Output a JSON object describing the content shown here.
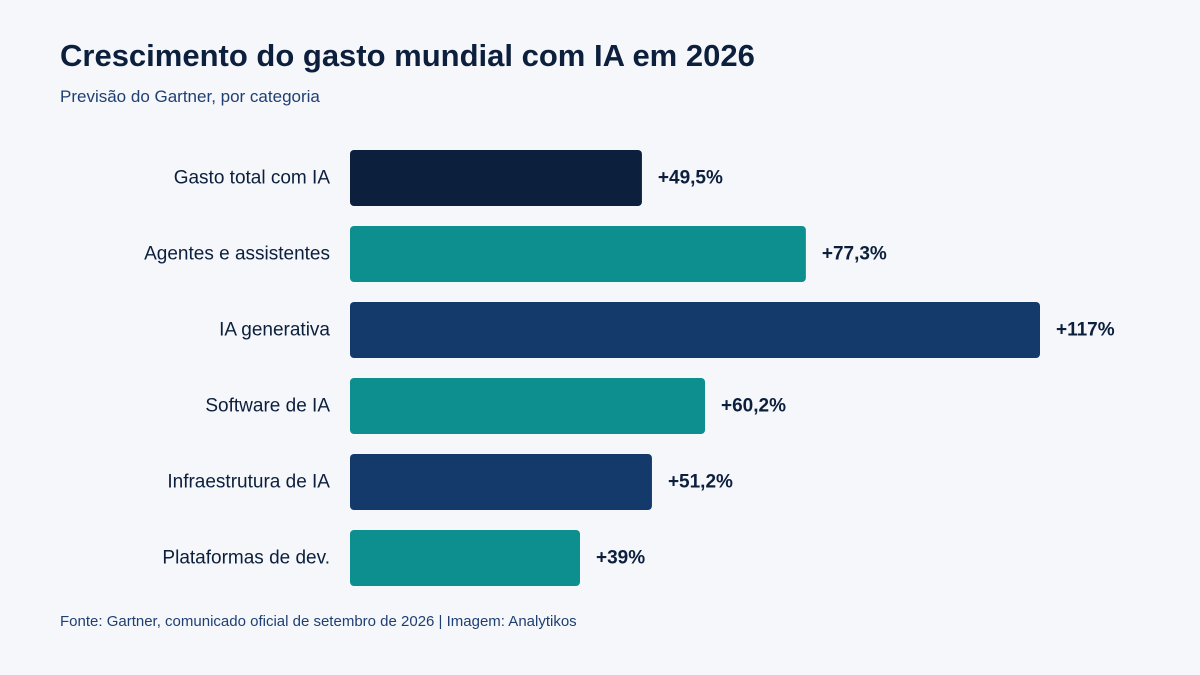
{
  "title": "Crescimento do gasto mundial com IA em 2026",
  "subtitle": "Previsão do Gartner, por categoria",
  "source": "Fonte: Gartner, comunicado oficial de setembro de 2026 | Imagem: Analytikos",
  "colors": {
    "background": "#f5f7fa",
    "total": "#0c1f3d",
    "teal": "#0e8f8f",
    "navy": "#143a6b",
    "text": "#0c1f3d"
  },
  "chart_data": {
    "type": "bar",
    "orientation": "horizontal",
    "title": "Crescimento do gasto mundial com IA em 2026",
    "subtitle": "Previsão do Gartner, por categoria",
    "xlabel": "",
    "ylabel": "",
    "xlim": [
      0,
      117
    ],
    "grid": false,
    "unit": "%",
    "categories": [
      "Gasto total com IA",
      "Agentes e assistentes",
      "IA generativa",
      "Software de IA",
      "Infraestrutura de IA",
      "Plataformas de dev."
    ],
    "values": [
      49.5,
      77.3,
      117,
      60.2,
      51.2,
      39
    ],
    "data_labels": [
      "+49,5%",
      "+77,3%",
      "+117%",
      "+60,2%",
      "+51,2%",
      "+39%"
    ],
    "bar_colors": [
      "#0c1f3d",
      "#0e8f8f",
      "#143a6b",
      "#0e8f8f",
      "#143a6b",
      "#0e8f8f"
    ]
  }
}
